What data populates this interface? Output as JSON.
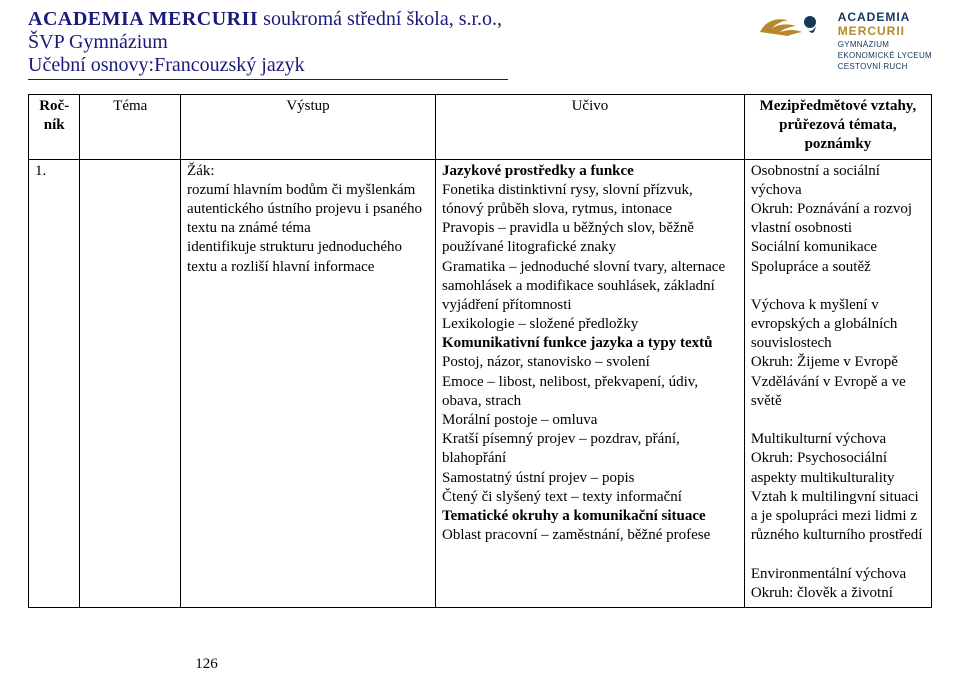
{
  "header": {
    "title_bold": "ACADEMIA MERCURII",
    "title_rest": "  soukromá střední škola, s.r.o.,",
    "line2": "ŠVP Gymnázium",
    "line3": "Učební osnovy:Francouzský jazyk",
    "hr_color": "#1a1a7a"
  },
  "logo": {
    "line1": "ACADEMIA",
    "line2": "MERCURII",
    "sub1": "GYMNÁZIUM",
    "sub2": "EKONOMICKÉ LYCEUM",
    "sub3": "CESTOVNÍ RUCH",
    "wing_color": "#b58a2e",
    "head_color": "#16365a"
  },
  "table": {
    "headers": {
      "rocnik": "Roč-ník",
      "tema": "Téma",
      "vystup": "Výstup",
      "ucivo": "Učivo",
      "col5": "Mezipředmětové vztahy, průřezová témata, poznámky"
    },
    "row1": {
      "c1": "1.",
      "c2": "Žák:\nrozumí hlavním bodům či myšlenkám autentického ústního projevu i psaného textu na známé téma\nidentifikuje strukturu jednoduchého textu a rozliší hlavní informace",
      "c3": "Jazykové prostředky a funkce\nFonetika distinktivní rysy, slovní přízvuk, tónový průběh slova, rytmus, intonace\nPravopis – pravidla u běžných slov, běžně používané litografické znaky\nGramatika – jednoduché slovní tvary, alternace samohlásek a modifikace souhlásek, základní vyjádření přítomnosti\nLexikologie – složené předložky\nKomunikativní funkce jazyka a typy textů\nPostoj, názor, stanovisko – svolení\nEmoce – libost, nelibost, překvapení, údiv, obava, strach\nMorální postoje – omluva\nKratší písemný projev – pozdrav, přání, blahopřání\nSamostatný ústní projev – popis\nČtený či slyšený text – texty informační\nTematické okruhy a komunikační situace\nOblast pracovní – zaměstnání, běžné profese",
      "c3_bold": [
        "Jazykové prostředky a funkce",
        "Komunikativní funkce jazyka a typy textů",
        "Tematické okruhy a komunikační situace"
      ],
      "c4": "Osobnostní a sociální výchova\nOkruh: Poznávání a rozvoj vlastní osobnosti\nSociální komunikace\nSpolupráce a soutěž\n\nVýchova k myšlení v evropských a globálních souvislostech\nOkruh: Žijeme v Evropě\nVzdělávání v Evropě a ve světě\n\nMultikulturní výchova\nOkruh: Psychosociální aspekty multikulturality\nVztah k multilingvní situaci a je spolupráci mezi lidmi z různého kulturního prostředí\n\nEnvironmentální výchova\nOkruh: člověk a životní"
    }
  },
  "page_number": "126",
  "style": {
    "page_bg": "#ffffff",
    "text_color": "#000000",
    "header_color": "#1a1a7a",
    "font_body": "Times New Roman",
    "font_logo": "Arial",
    "base_fontsize": 15,
    "header_fontsize": 20,
    "th_big_fontsize": 23
  }
}
